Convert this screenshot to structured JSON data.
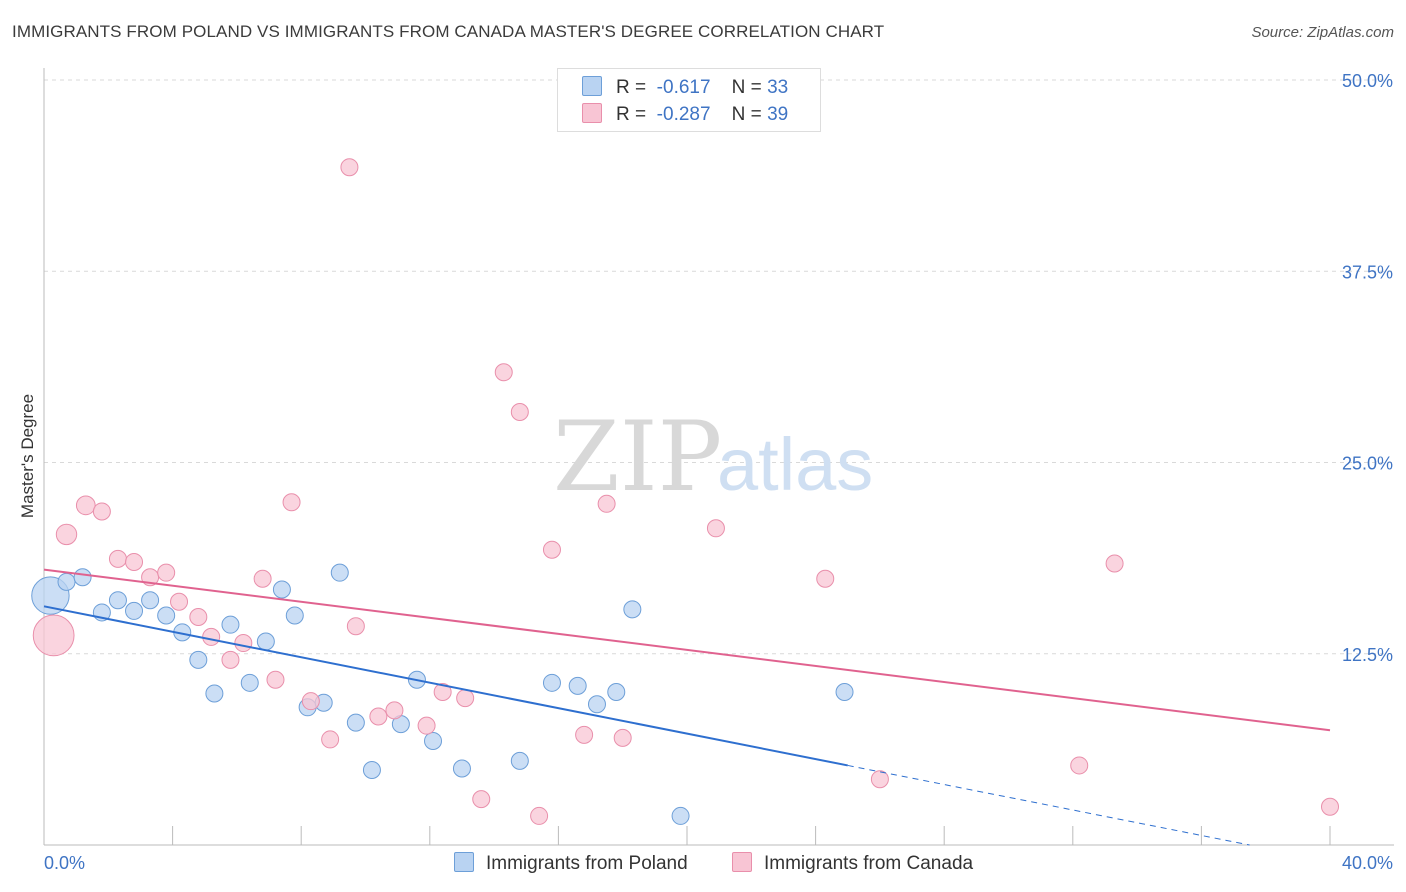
{
  "title": "IMMIGRANTS FROM POLAND VS IMMIGRANTS FROM CANADA MASTER'S DEGREE CORRELATION CHART",
  "source": "Source: ZipAtlas.com",
  "watermark": {
    "zip": "ZIP",
    "atlas": "atlas"
  },
  "legend": {
    "r_label": "R =",
    "n_label": "N =",
    "poland": {
      "r": "-0.617",
      "n": "33"
    },
    "canada": {
      "r": "-0.287",
      "n": "39"
    }
  },
  "colors": {
    "poland_fill": "#b9d3f2",
    "poland_stroke": "#6d9fd8",
    "poland_line": "#2e6fcf",
    "canada_fill": "#f8c5d4",
    "canada_stroke": "#e98fab",
    "canada_line": "#e0628f",
    "axis_label": "#3f74c4"
  },
  "chart_data": {
    "type": "scatter",
    "title": "IMMIGRANTS FROM POLAND VS IMMIGRANTS FROM CANADA MASTER'S DEGREE CORRELATION CHART",
    "xlabel": "",
    "ylabel": "Master's Degree",
    "xlim": [
      0,
      40
    ],
    "ylim": [
      0,
      50
    ],
    "x_tick_labels": [
      "0.0%",
      "40.0%"
    ],
    "y_ticks": [
      12.5,
      25.0,
      37.5,
      50.0
    ],
    "y_tick_labels": [
      "12.5%",
      "25.0%",
      "37.5%",
      "50.0%"
    ],
    "grid": true,
    "series": [
      {
        "name": "Immigrants from Poland",
        "r": -0.617,
        "n": 33,
        "points": [
          [
            0.2,
            16.3,
            2.2
          ],
          [
            0.7,
            17.2,
            1
          ],
          [
            1.2,
            17.5,
            1
          ],
          [
            1.8,
            15.2,
            1
          ],
          [
            2.3,
            16.0,
            1
          ],
          [
            2.8,
            15.3,
            1
          ],
          [
            3.3,
            16.0,
            1
          ],
          [
            3.8,
            15.0,
            1
          ],
          [
            4.3,
            13.9,
            1
          ],
          [
            4.8,
            12.1,
            1
          ],
          [
            5.3,
            9.9,
            1
          ],
          [
            5.8,
            14.4,
            1
          ],
          [
            6.4,
            10.6,
            1
          ],
          [
            6.9,
            13.3,
            1
          ],
          [
            7.4,
            16.7,
            1
          ],
          [
            7.8,
            15.0,
            1
          ],
          [
            8.2,
            9.0,
            1
          ],
          [
            8.7,
            9.3,
            1
          ],
          [
            9.2,
            17.8,
            1
          ],
          [
            9.7,
            8.0,
            1
          ],
          [
            10.2,
            4.9,
            1
          ],
          [
            11.1,
            7.9,
            1
          ],
          [
            11.6,
            10.8,
            1
          ],
          [
            12.1,
            6.8,
            1
          ],
          [
            13.0,
            5.0,
            1
          ],
          [
            14.8,
            5.5,
            1
          ],
          [
            15.8,
            10.6,
            1
          ],
          [
            16.6,
            10.4,
            1
          ],
          [
            17.2,
            9.2,
            1
          ],
          [
            17.8,
            10.0,
            1
          ],
          [
            18.3,
            15.4,
            1
          ],
          [
            19.8,
            1.9,
            1
          ],
          [
            24.9,
            10.0,
            1
          ]
        ],
        "trend": {
          "x0": 0,
          "y0": 15.6,
          "x1": 25.0,
          "y1": 5.2,
          "dashed_to": [
            37.5,
            0
          ]
        }
      },
      {
        "name": "Immigrants from Canada",
        "r": -0.287,
        "n": 39,
        "points": [
          [
            0.3,
            13.7,
            2.4
          ],
          [
            0.7,
            20.3,
            1.2
          ],
          [
            1.3,
            22.2,
            1.1
          ],
          [
            1.8,
            21.8,
            1
          ],
          [
            2.3,
            18.7,
            1
          ],
          [
            2.8,
            18.5,
            1
          ],
          [
            3.3,
            17.5,
            1
          ],
          [
            3.8,
            17.8,
            1
          ],
          [
            4.2,
            15.9,
            1
          ],
          [
            4.8,
            14.9,
            1
          ],
          [
            5.2,
            13.6,
            1
          ],
          [
            5.8,
            12.1,
            1
          ],
          [
            6.2,
            13.2,
            1
          ],
          [
            6.8,
            17.4,
            1
          ],
          [
            7.2,
            10.8,
            1
          ],
          [
            7.7,
            22.4,
            1
          ],
          [
            8.3,
            9.4,
            1
          ],
          [
            8.9,
            6.9,
            1
          ],
          [
            9.5,
            44.3,
            1
          ],
          [
            9.7,
            14.3,
            1
          ],
          [
            10.4,
            8.4,
            1
          ],
          [
            10.9,
            8.8,
            1
          ],
          [
            11.9,
            7.8,
            1
          ],
          [
            12.4,
            10.0,
            1
          ],
          [
            13.1,
            9.6,
            1
          ],
          [
            13.6,
            3.0,
            1
          ],
          [
            14.3,
            30.9,
            1
          ],
          [
            14.8,
            28.3,
            1
          ],
          [
            15.4,
            1.9,
            1
          ],
          [
            15.8,
            19.3,
            1
          ],
          [
            16.8,
            7.2,
            1
          ],
          [
            17.5,
            22.3,
            1
          ],
          [
            18.0,
            7.0,
            1
          ],
          [
            20.9,
            20.7,
            1
          ],
          [
            24.3,
            17.4,
            1
          ],
          [
            26.0,
            4.3,
            1
          ],
          [
            32.2,
            5.2,
            1
          ],
          [
            33.3,
            18.4,
            1
          ],
          [
            40.0,
            2.5,
            1
          ]
        ],
        "trend": {
          "x0": 0,
          "y0": 18.0,
          "x1": 40.0,
          "y1": 7.5
        }
      }
    ]
  },
  "bottom_legend": {
    "poland": "Immigrants from Poland",
    "canada": "Immigrants from Canada"
  }
}
